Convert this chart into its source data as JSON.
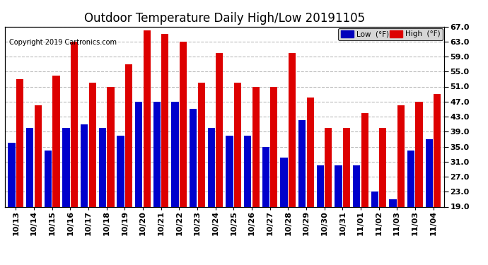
{
  "title": "Outdoor Temperature Daily High/Low 20191105",
  "copyright": "Copyright 2019 Cartronics.com",
  "legend_low_label": "Low  (°F)",
  "legend_high_label": "High  (°F)",
  "legend_low_color": "#0000bb",
  "legend_high_color": "#dd0000",
  "bar_low_color": "#0000cc",
  "bar_high_color": "#dd0000",
  "background_color": "#ffffff",
  "plot_bg_color": "#ffffff",
  "ylim": [
    19.0,
    67.0
  ],
  "ybase": 19.0,
  "yticks": [
    19.0,
    23.0,
    27.0,
    31.0,
    35.0,
    39.0,
    43.0,
    47.0,
    51.0,
    55.0,
    59.0,
    63.0,
    67.0
  ],
  "categories": [
    "10/13",
    "10/14",
    "10/15",
    "10/16",
    "10/17",
    "10/18",
    "10/19",
    "10/20",
    "10/21",
    "10/22",
    "10/23",
    "10/24",
    "10/25",
    "10/26",
    "10/27",
    "10/28",
    "10/29",
    "10/30",
    "10/31",
    "11/01",
    "11/02",
    "11/03",
    "11/03",
    "11/04"
  ],
  "high_values": [
    53,
    46,
    54,
    63,
    52,
    51,
    57,
    66,
    65,
    63,
    52,
    60,
    52,
    51,
    51,
    60,
    48,
    40,
    40,
    44,
    40,
    46,
    47,
    49
  ],
  "low_values": [
    36,
    40,
    34,
    40,
    41,
    40,
    38,
    47,
    47,
    47,
    45,
    40,
    38,
    38,
    35,
    32,
    42,
    30,
    30,
    30,
    23,
    21,
    34,
    37
  ],
  "grid_color": "#bbbbbb",
  "title_fontsize": 12,
  "tick_fontsize": 8,
  "bar_width": 0.4,
  "bar_gap": 0.05
}
